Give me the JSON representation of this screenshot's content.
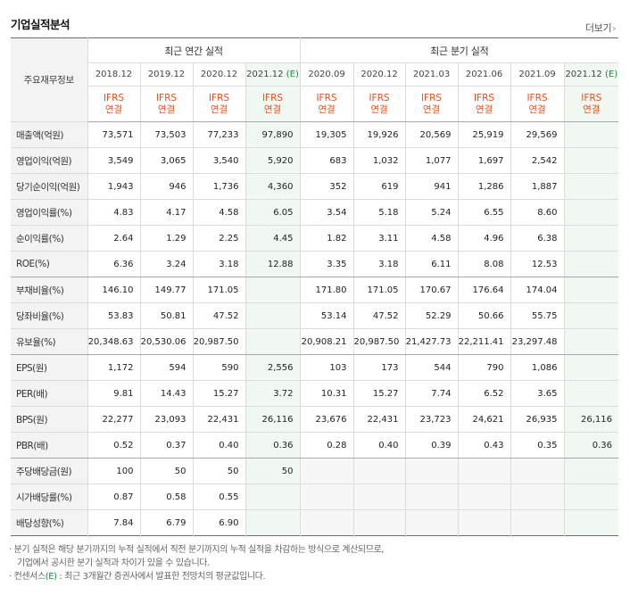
{
  "title": "기업실적분석",
  "more_label": "더보기",
  "table": {
    "corner_label": "주요재무정보",
    "annual_label": "최근 연간 실적",
    "quarter_label": "최근 분기 실적",
    "columns": [
      {
        "period": "2018.12",
        "suffix": "",
        "est": false,
        "group": "annual"
      },
      {
        "period": "2019.12",
        "suffix": "",
        "est": false,
        "group": "annual"
      },
      {
        "period": "2020.12",
        "suffix": "",
        "est": false,
        "group": "annual"
      },
      {
        "period": "2021.12",
        "suffix": "(E)",
        "est": true,
        "group": "annual"
      },
      {
        "period": "2020.09",
        "suffix": "",
        "est": false,
        "group": "quarter"
      },
      {
        "period": "2020.12",
        "suffix": "",
        "est": false,
        "group": "quarter"
      },
      {
        "period": "2021.03",
        "suffix": "",
        "est": false,
        "group": "quarter"
      },
      {
        "period": "2021.06",
        "suffix": "",
        "est": false,
        "group": "quarter"
      },
      {
        "period": "2021.09",
        "suffix": "",
        "est": false,
        "group": "quarter"
      },
      {
        "period": "2021.12",
        "suffix": "(E)",
        "est": true,
        "group": "quarter"
      }
    ],
    "ifrs_top": "IFRS",
    "ifrs_bottom": "연결",
    "rows": [
      {
        "label": "매출액(억원)",
        "values": [
          "73,571",
          "73,503",
          "77,233",
          "97,890",
          "19,305",
          "19,926",
          "20,569",
          "25,919",
          "29,569",
          ""
        ]
      },
      {
        "label": "영업이익(억원)",
        "values": [
          "3,549",
          "3,065",
          "3,540",
          "5,920",
          "683",
          "1,032",
          "1,077",
          "1,697",
          "2,542",
          ""
        ]
      },
      {
        "label": "당기순이익(억원)",
        "values": [
          "1,943",
          "946",
          "1,736",
          "4,360",
          "352",
          "619",
          "941",
          "1,286",
          "1,887",
          ""
        ]
      },
      {
        "label": "영업이익률(%)",
        "values": [
          "4.83",
          "4.17",
          "4.58",
          "6.05",
          "3.54",
          "5.18",
          "5.24",
          "6.55",
          "8.60",
          ""
        ]
      },
      {
        "label": "순이익률(%)",
        "values": [
          "2.64",
          "1.29",
          "2.25",
          "4.45",
          "1.82",
          "3.11",
          "4.58",
          "4.96",
          "6.38",
          ""
        ]
      },
      {
        "label": "ROE(%)",
        "values": [
          "6.36",
          "3.24",
          "3.18",
          "12.88",
          "3.35",
          "3.18",
          "6.11",
          "8.08",
          "12.53",
          ""
        ]
      },
      {
        "label": "부채비율(%)",
        "values": [
          "146.10",
          "149.77",
          "171.05",
          "",
          "171.80",
          "171.05",
          "170.67",
          "176.64",
          "174.04",
          ""
        ]
      },
      {
        "label": "당좌비율(%)",
        "values": [
          "53.83",
          "50.81",
          "47.52",
          "",
          "53.14",
          "47.52",
          "52.29",
          "50.66",
          "55.75",
          ""
        ]
      },
      {
        "label": "유보율(%)",
        "values": [
          "20,348.63",
          "20,530.06",
          "20,987.50",
          "",
          "20,908.21",
          "20,987.50",
          "21,427.73",
          "22,211.41",
          "23,297.48",
          ""
        ]
      },
      {
        "label": "EPS(원)",
        "values": [
          "1,172",
          "594",
          "590",
          "2,556",
          "103",
          "173",
          "544",
          "790",
          "1,086",
          ""
        ]
      },
      {
        "label": "PER(배)",
        "values": [
          "9.81",
          "14.43",
          "15.27",
          "3.72",
          "10.31",
          "15.27",
          "7.74",
          "6.52",
          "3.65",
          ""
        ]
      },
      {
        "label": "BPS(원)",
        "values": [
          "22,277",
          "23,093",
          "22,431",
          "26,116",
          "23,676",
          "22,431",
          "23,723",
          "24,621",
          "26,935",
          "26,116"
        ]
      },
      {
        "label": "PBR(배)",
        "values": [
          "0.52",
          "0.37",
          "0.40",
          "0.36",
          "0.28",
          "0.40",
          "0.39",
          "0.43",
          "0.35",
          "0.36"
        ]
      },
      {
        "label": "주당배당금(원)",
        "values": [
          "100",
          "50",
          "50",
          "50",
          "",
          "",
          "",
          "",
          "",
          ""
        ]
      },
      {
        "label": "시가배당률(%)",
        "values": [
          "0.87",
          "0.58",
          "0.55",
          "",
          "",
          "",
          "",
          "",
          "",
          ""
        ]
      },
      {
        "label": "배당성향(%)",
        "values": [
          "7.84",
          "6.79",
          "6.90",
          "",
          "",
          "",
          "",
          "",
          "",
          ""
        ]
      }
    ]
  },
  "notes": {
    "line1": "분기 실적은 해당 분기까지의 누적 실적에서 직전 분기까지의 누적 실적을 차감하는 방식으로 계산되므로,",
    "line2": "기업에서 공시한 분기 실적과 차이가 있을 수 있습니다.",
    "line3_prefix": "컨센서스",
    "line3_mark": "(E)",
    "line3_rest": " : 최근 3개월간 증권사에서 발표한 전망치의 평균값입니다."
  }
}
